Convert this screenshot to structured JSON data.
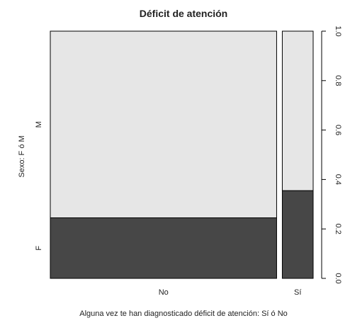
{
  "chart_data": {
    "type": "mosaic",
    "title": "Déficit de atención",
    "xlabel": "Alguna vez te han diagnosticado déficit de atención: Sí ó No",
    "ylabel": "Sexo: F ó M",
    "categories": [
      "No",
      "Sí"
    ],
    "column_proportions": [
      0.88,
      0.12
    ],
    "stack_levels": [
      "F",
      "M"
    ],
    "series": [
      {
        "name": "F",
        "values": [
          0.245,
          0.355
        ],
        "color": "#474747"
      },
      {
        "name": "M",
        "values": [
          0.755,
          0.645
        ],
        "color": "#e6e6e6"
      }
    ],
    "y_axis": {
      "position": "right",
      "ylim": [
        0,
        1
      ],
      "ticks": [
        "0.0",
        "0.2",
        "0.4",
        "0.6",
        "0.8",
        "1.0"
      ]
    },
    "grid": false
  }
}
